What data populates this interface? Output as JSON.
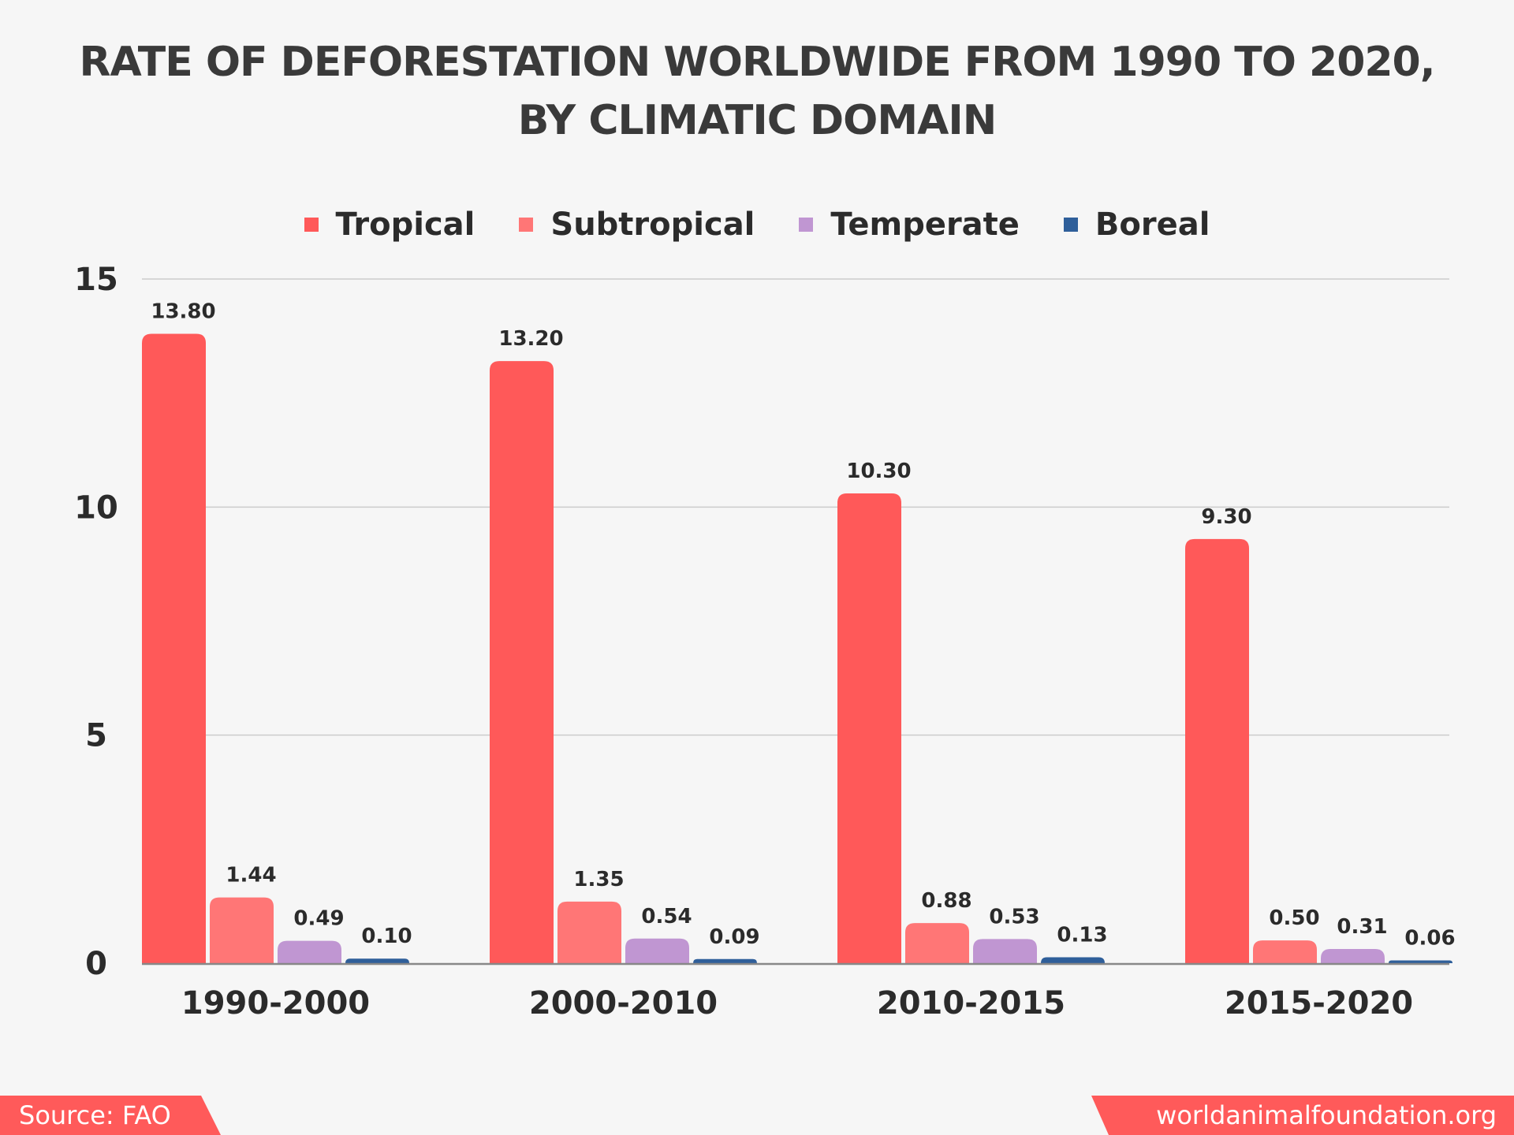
{
  "chart_data": {
    "type": "bar",
    "title_lines": [
      "RATE OF DEFORESTATION WORLDWIDE FROM 1990 TO 2020,",
      "BY CLIMATIC DOMAIN"
    ],
    "categories": [
      "1990-2000",
      "2000-2010",
      "2010-2015",
      "2015-2020"
    ],
    "series": [
      {
        "name": "Tropical",
        "color": "#ff5959",
        "values": [
          13.8,
          13.2,
          10.3,
          9.3
        ],
        "labels": [
          "13.80",
          "13.20",
          "10.30",
          "9.30"
        ]
      },
      {
        "name": "Subtropical",
        "color": "#ff7676",
        "values": [
          1.44,
          1.35,
          0.88,
          0.5
        ],
        "labels": [
          "1.44",
          "1.35",
          "0.88",
          "0.50"
        ]
      },
      {
        "name": "Temperate",
        "color": "#c096d2",
        "values": [
          0.49,
          0.54,
          0.53,
          0.31
        ],
        "labels": [
          "0.49",
          "0.54",
          "0.53",
          "0.31"
        ]
      },
      {
        "name": "Boreal",
        "color": "#2f5f9a",
        "values": [
          0.1,
          0.09,
          0.13,
          0.06
        ],
        "labels": [
          "0.10",
          "0.09",
          "0.13",
          "0.06"
        ]
      }
    ],
    "yticks": [
      "0",
      "5",
      "10",
      "15"
    ],
    "ylim": [
      0,
      15
    ],
    "grid": true,
    "legend": "top-center"
  },
  "footer": {
    "source": "Source:  FAO",
    "site": "worldanimalfoundation.org"
  }
}
